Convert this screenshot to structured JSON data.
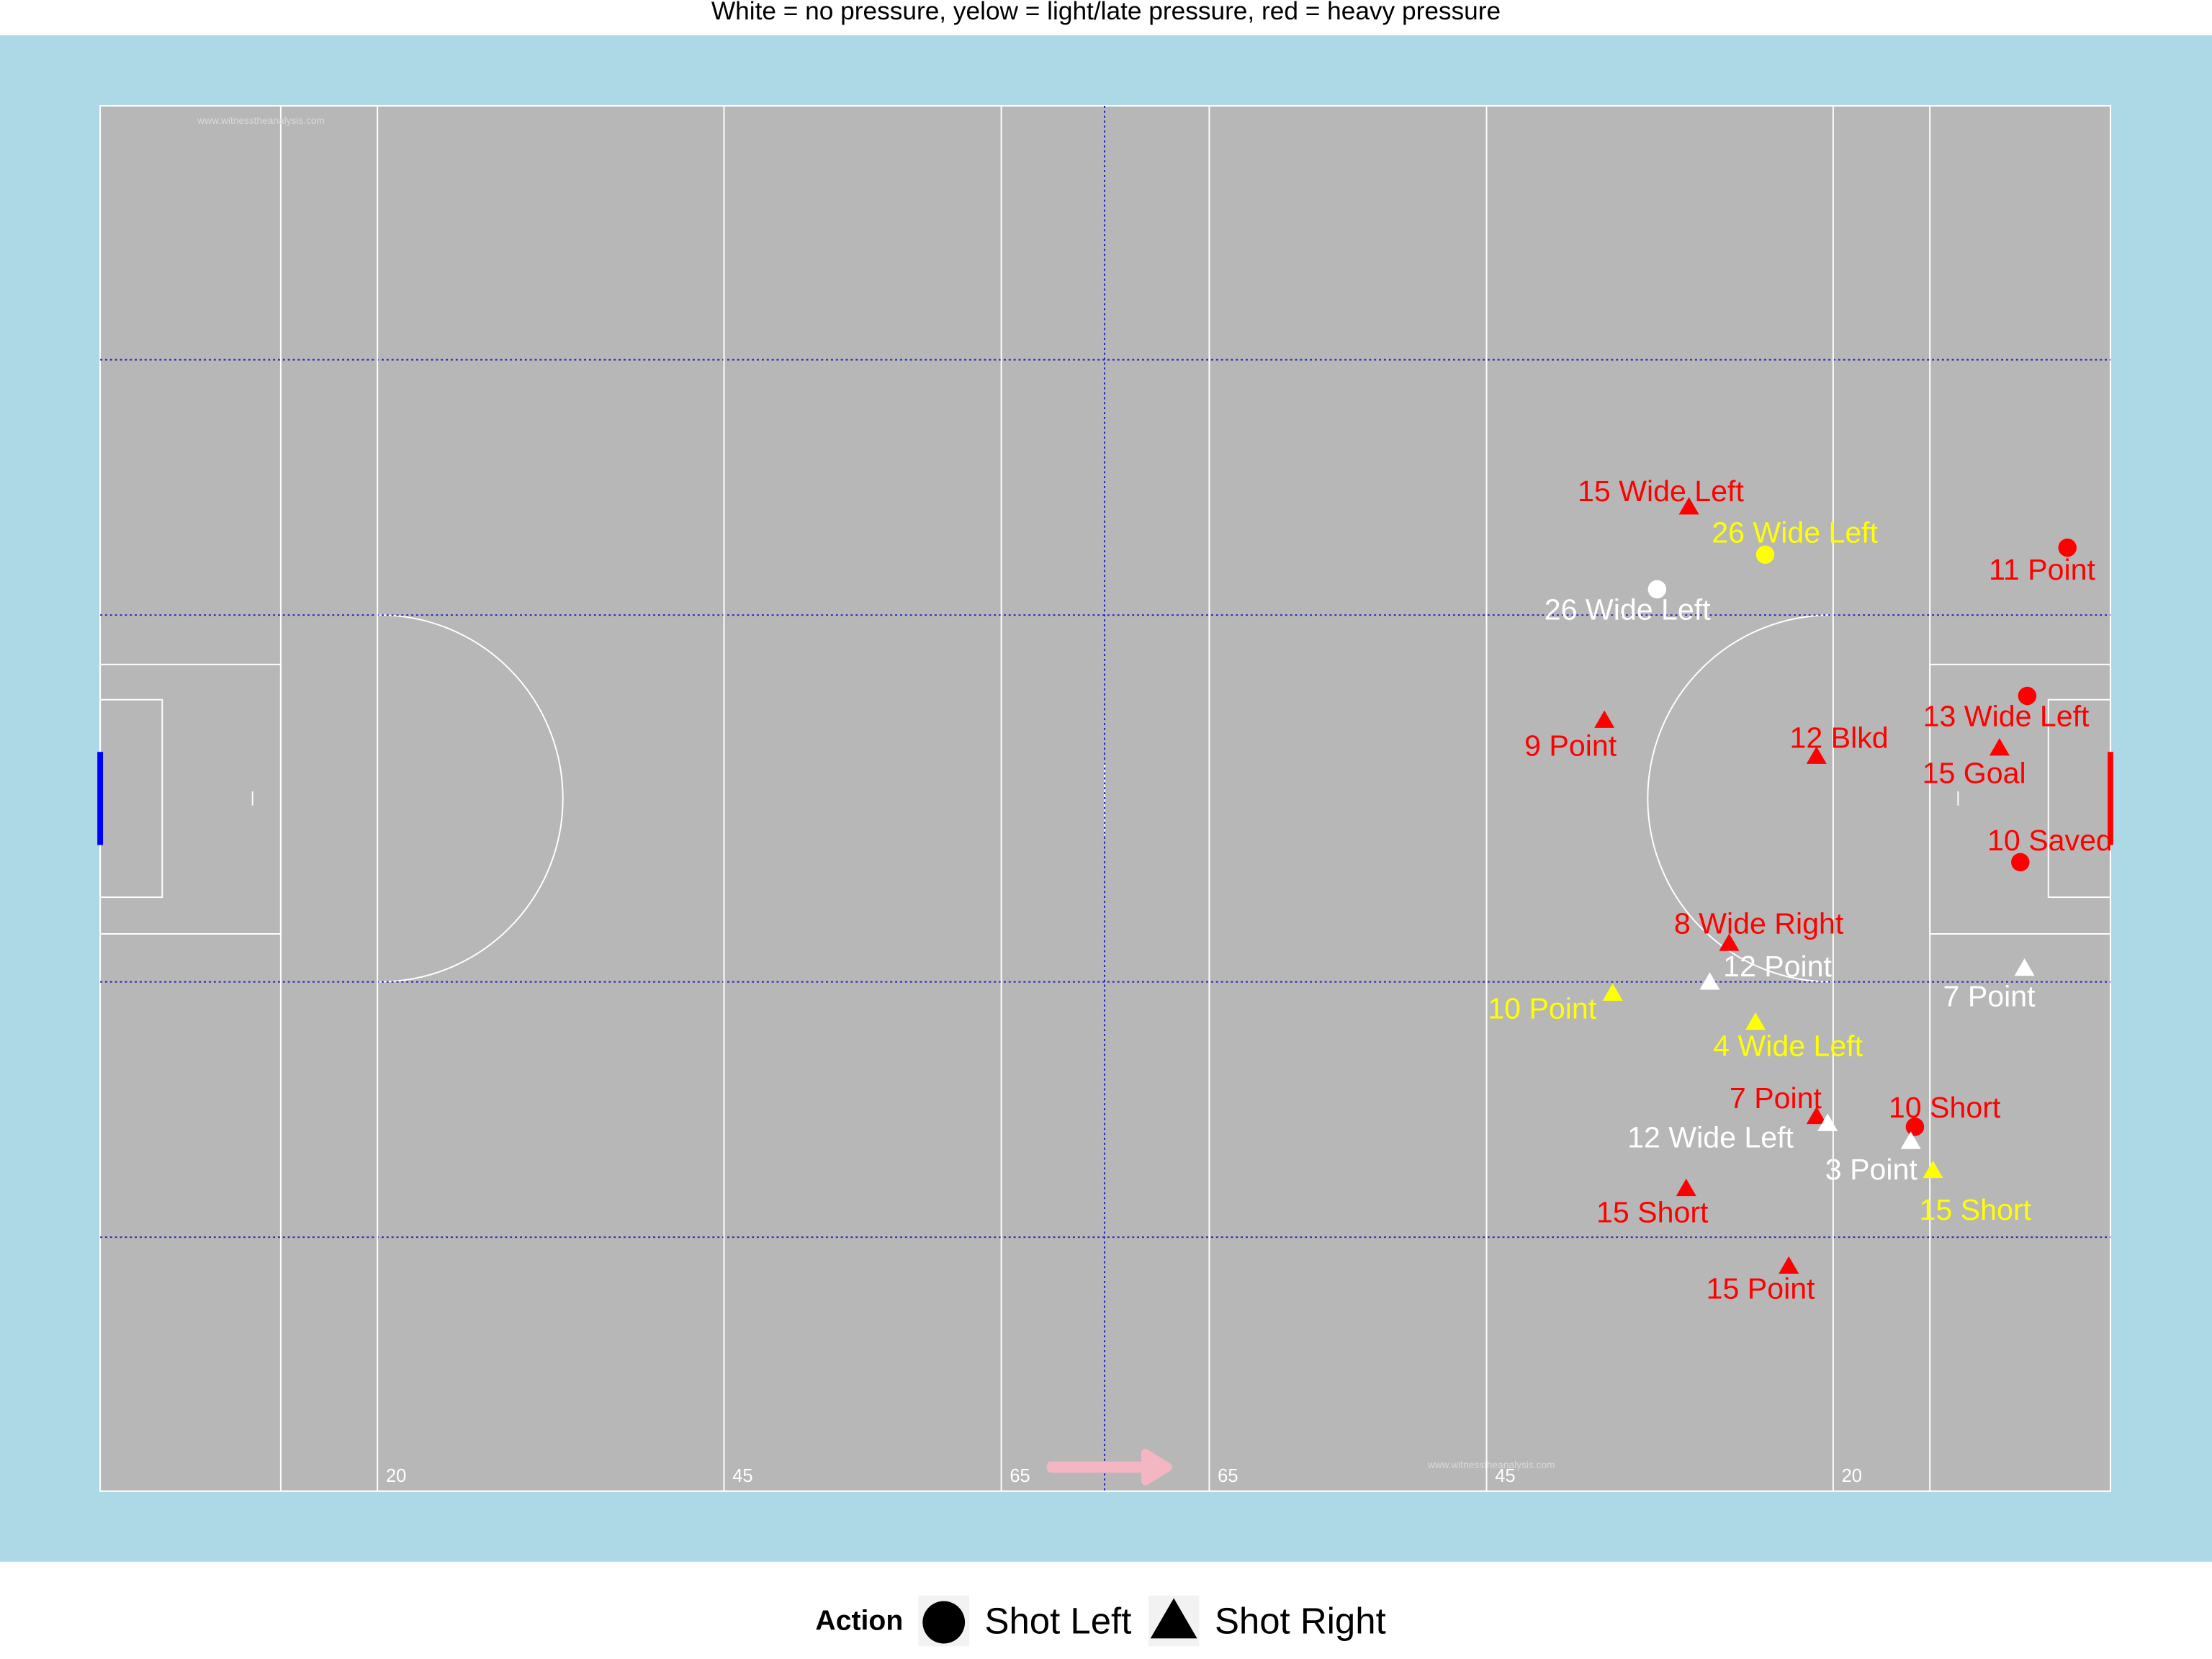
{
  "chart_data": {
    "type": "scatter",
    "title": "White = no pressure, yelow = light/late pressure, red = heavy pressure",
    "watermark": "www.witnesstheanalysis.com",
    "xlim": [
      0,
      145
    ],
    "ylim": [
      0,
      100
    ],
    "xticks": [
      20,
      45,
      65,
      {
        "value": 80,
        "label": "65"
      },
      {
        "value": 100,
        "label": "45"
      },
      {
        "value": 125,
        "label": "20"
      }
    ],
    "legend": {
      "title": "Action",
      "entries": [
        {
          "name": "Shot Left",
          "shape": "circle"
        },
        {
          "name": "Shot Right",
          "shape": "triangle"
        }
      ]
    },
    "points": [
      {
        "label": "15 Wide Left",
        "action": "Shot Right",
        "color": "#ff0000",
        "x": 114.6,
        "y": 71.0
      },
      {
        "label": "26 Wide Left",
        "action": "Shot Left",
        "color": "#ffff00",
        "x": 120.1,
        "y": 67.6
      },
      {
        "label": "11 Point",
        "action": "Shot Left",
        "color": "#ff0000",
        "x": 141.9,
        "y": 68.1
      },
      {
        "label": "26 Wide Left",
        "action": "Shot Left",
        "color": "#ffffff",
        "x": 112.3,
        "y": 65.1
      },
      {
        "label": "9 Point",
        "action": "Shot Right",
        "color": "#ff0000",
        "x": 108.5,
        "y": 55.6
      },
      {
        "label": "12 Blkd",
        "action": "Shot Right",
        "color": "#ff0000",
        "x": 123.8,
        "y": 53.0
      },
      {
        "label": "13 Wide Left",
        "action": "Shot Left",
        "color": "#ff0000",
        "x": 139.0,
        "y": 57.4
      },
      {
        "label": "15 Goal",
        "action": "Shot Right",
        "color": "#ff0000",
        "x": 137.0,
        "y": 53.6
      },
      {
        "label": "10 Saved",
        "action": "Shot Left",
        "color": "#ff0000",
        "x": 138.5,
        "y": 45.4
      },
      {
        "label": "8 Wide Right",
        "action": "Shot Right",
        "color": "#ff0000",
        "x": 117.5,
        "y": 39.5
      },
      {
        "label": "12 Point",
        "action": "Shot Right",
        "color": "#ffffff",
        "x": 116.1,
        "y": 36.7
      },
      {
        "label": "10 Point",
        "action": "Shot Right",
        "color": "#ffff00",
        "x": 109.1,
        "y": 35.9
      },
      {
        "label": "7 Point",
        "action": "Shot Right",
        "color": "#ffffff",
        "x": 138.8,
        "y": 37.7
      },
      {
        "label": "4 Wide Left",
        "action": "Shot Right",
        "color": "#ffff00",
        "x": 119.4,
        "y": 33.8
      },
      {
        "label": "7 Point",
        "action": "Shot Right",
        "color": "#ff0000",
        "x": 123.8,
        "y": 27.0
      },
      {
        "label": "12 Wide Left",
        "action": "Shot Right",
        "color": "#ffffff",
        "x": 124.6,
        "y": 26.5
      },
      {
        "label": "10 Short",
        "action": "Shot Left",
        "color": "#ff0000",
        "x": 130.9,
        "y": 26.3
      },
      {
        "label": "3 Point",
        "action": "Shot Right",
        "color": "#ffffff",
        "x": 130.6,
        "y": 25.2
      },
      {
        "label": "15 Short",
        "action": "Shot Right",
        "color": "#ffff00",
        "x": 132.2,
        "y": 23.1
      },
      {
        "label": "15 Short",
        "action": "Shot Right",
        "color": "#ff0000",
        "x": 114.4,
        "y": 21.8
      },
      {
        "label": "15 Point",
        "action": "Shot Right",
        "color": "#ff0000",
        "x": 121.8,
        "y": 16.2
      }
    ]
  }
}
